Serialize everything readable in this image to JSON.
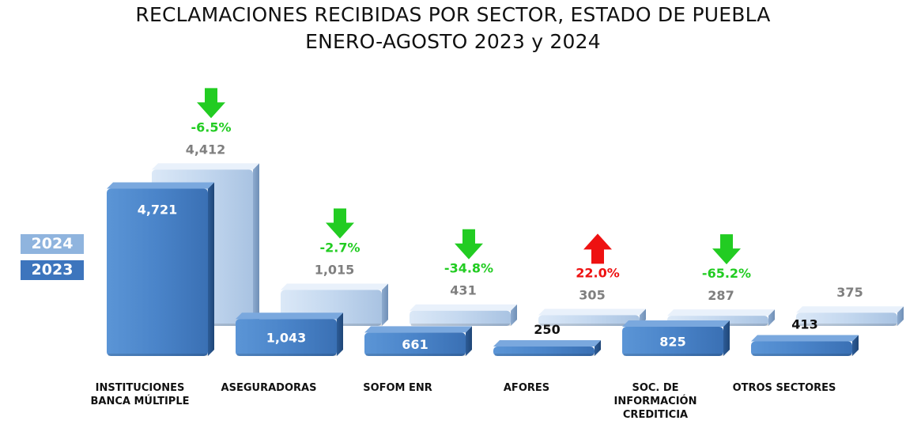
{
  "chart_data": {
    "type": "bar",
    "title": "RECLAMACIONES RECIBIDAS POR SECTOR, ESTADO DE PUEBLA",
    "subtitle": "ENERO-AGOSTO 2023 y 2024",
    "categories": [
      [
        "INSTITUCIONES",
        "BANCA MÚLTIPLE"
      ],
      [
        "ASEGURADORAS"
      ],
      [
        "SOFOM ENR"
      ],
      [
        "AFORES"
      ],
      [
        "SOC. DE",
        "INFORMACIÓN",
        "CREDITICIA"
      ],
      [
        "OTROS SECTORES"
      ]
    ],
    "series": [
      {
        "name": "2023",
        "values": [
          4721,
          1043,
          661,
          250,
          825,
          413
        ],
        "labels": [
          "4,721",
          "1,043",
          "661",
          "250",
          "825",
          "413"
        ],
        "color": "#4a84c9"
      },
      {
        "name": "2024",
        "values": [
          4412,
          1015,
          431,
          305,
          287,
          375
        ],
        "labels": [
          "4,412",
          "1,015",
          "431",
          "305",
          "287",
          "375"
        ],
        "color": "#c7dbf2"
      }
    ],
    "changes": [
      {
        "label": "-6.5%",
        "direction": "down",
        "color": "#22cc22"
      },
      {
        "label": "-2.7%",
        "direction": "down",
        "color": "#22cc22"
      },
      {
        "label": "-34.8%",
        "direction": "down",
        "color": "#22cc22"
      },
      {
        "label": "22.0%",
        "direction": "up",
        "color": "#ee1111"
      },
      {
        "label": "-65.2%",
        "direction": "down",
        "color": "#22cc22"
      },
      {
        "label": "",
        "direction": "",
        "color": ""
      }
    ],
    "legend": [
      "2024",
      "2023"
    ],
    "legend_position": "left",
    "grid": false
  }
}
